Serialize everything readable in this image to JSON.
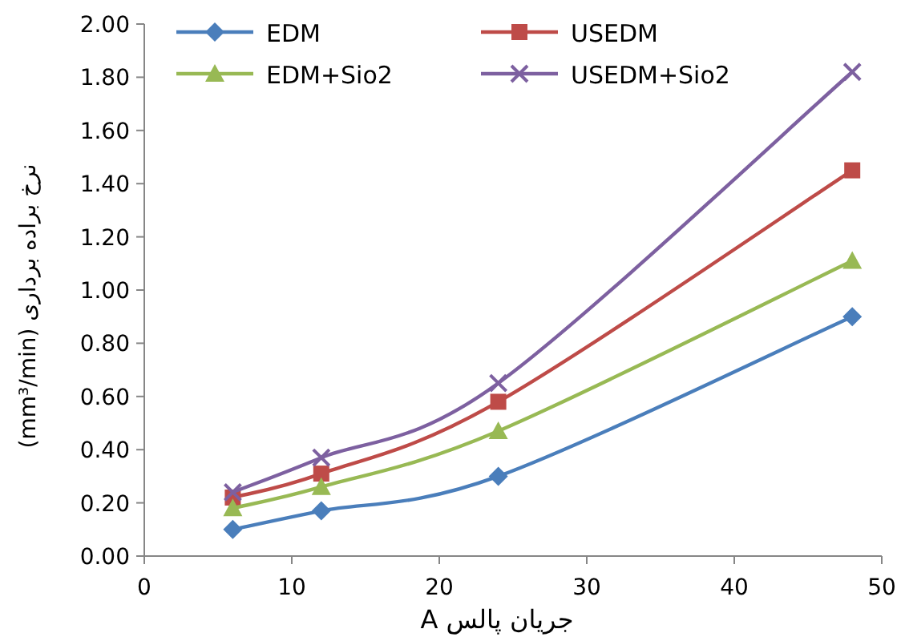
{
  "chart_data": {
    "type": "line",
    "xlabel": "جریان پالس  A",
    "ylabel": "نرخ براده برداری   (mm³/min)",
    "x": [
      6,
      12,
      24,
      48
    ],
    "series": [
      {
        "name": "EDM",
        "color": "#4a7ebb",
        "marker": "diamond",
        "values": [
          0.1,
          0.17,
          0.3,
          0.9
        ]
      },
      {
        "name": "USEDM",
        "color": "#be4b48",
        "marker": "square",
        "values": [
          0.22,
          0.31,
          0.58,
          1.45
        ]
      },
      {
        "name": "EDM+Sio2",
        "color": "#98b954",
        "marker": "triangle",
        "values": [
          0.18,
          0.26,
          0.47,
          1.11
        ]
      },
      {
        "name": "USEDM+Sio2",
        "color": "#7d60a0",
        "marker": "cross",
        "values": [
          0.24,
          0.37,
          0.65,
          1.82
        ]
      }
    ],
    "xlim": [
      0,
      50
    ],
    "xticks": [
      0,
      10,
      20,
      30,
      40,
      50
    ],
    "ylim": [
      0,
      2
    ],
    "yticks": [
      {
        "value": 0,
        "label": "0.00"
      },
      {
        "value": 0.2,
        "label": "0.20"
      },
      {
        "value": 0.4,
        "label": "0.40"
      },
      {
        "value": 0.6,
        "label": "0.60"
      },
      {
        "value": 0.8,
        "label": "0.80"
      },
      {
        "value": 1.0,
        "label": "1.00"
      },
      {
        "value": 1.2,
        "label": "1.20"
      },
      {
        "value": 1.4,
        "label": "1.40"
      },
      {
        "value": 1.6,
        "label": "1.60"
      },
      {
        "value": 1.8,
        "label": "1.80"
      },
      {
        "value": 2.0,
        "label": "2.00"
      }
    ],
    "legend": "top",
    "grid": false,
    "line_style": "solid"
  }
}
